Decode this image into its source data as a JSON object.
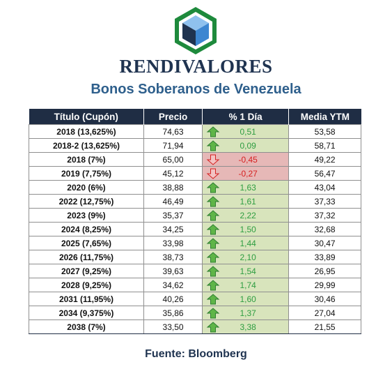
{
  "brand": {
    "name": "RENDIVALORES",
    "colors": {
      "navy": "#1f3350",
      "green": "#1e8a3c",
      "blue": "#4a8fd2"
    }
  },
  "subtitle": "Bonos Soberanos de Venezuela",
  "table": {
    "headers": [
      "Título (Cupón)",
      "Precio",
      "% 1 Día",
      "Media YTM"
    ],
    "rows": [
      {
        "title": "2018 (13,625%)",
        "price": "74,63",
        "direction": "up",
        "change": "0,51",
        "ytm": "53,58"
      },
      {
        "title": "2018-2 (13,625%)",
        "price": "71,94",
        "direction": "up",
        "change": "0,09",
        "ytm": "58,71"
      },
      {
        "title": "2018 (7%)",
        "price": "65,00",
        "direction": "down",
        "change": "-0,45",
        "ytm": "49,22"
      },
      {
        "title": "2019 (7,75%)",
        "price": "45,12",
        "direction": "down",
        "change": "-0,27",
        "ytm": "56,47"
      },
      {
        "title": "2020 (6%)",
        "price": "38,88",
        "direction": "up",
        "change": "1,63",
        "ytm": "43,04"
      },
      {
        "title": "2022 (12,75%)",
        "price": "46,49",
        "direction": "up",
        "change": "1,61",
        "ytm": "37,33"
      },
      {
        "title": "2023 (9%)",
        "price": "35,37",
        "direction": "up",
        "change": "2,22",
        "ytm": "37,32"
      },
      {
        "title": "2024 (8,25%)",
        "price": "34,25",
        "direction": "up",
        "change": "1,50",
        "ytm": "32,68"
      },
      {
        "title": "2025 (7,65%)",
        "price": "33,98",
        "direction": "up",
        "change": "1,44",
        "ytm": "30,47"
      },
      {
        "title": "2026 (11,75%)",
        "price": "38,73",
        "direction": "up",
        "change": "2,10",
        "ytm": "33,89"
      },
      {
        "title": "2027 (9,25%)",
        "price": "39,63",
        "direction": "up",
        "change": "1,54",
        "ytm": "26,95"
      },
      {
        "title": "2028 (9,25%)",
        "price": "34,62",
        "direction": "up",
        "change": "1,74",
        "ytm": "29,99"
      },
      {
        "title": "2031 (11,95%)",
        "price": "40,26",
        "direction": "up",
        "change": "1,60",
        "ytm": "30,46"
      },
      {
        "title": "2034 (9,375%)",
        "price": "35,86",
        "direction": "up",
        "change": "1,37",
        "ytm": "27,04"
      },
      {
        "title": "2038 (7%)",
        "price": "33,50",
        "direction": "up",
        "change": "3,38",
        "ytm": "21,55"
      }
    ],
    "colors": {
      "up_bg": "#d8e4bc",
      "up_text": "#2e9d41",
      "down_bg": "#e6b8b7",
      "down_text": "#d52020"
    },
    "icons": {
      "up": "green-up-arrow-icon",
      "down": "red-down-arrow-icon"
    }
  },
  "source": "Fuente: Bloomberg"
}
